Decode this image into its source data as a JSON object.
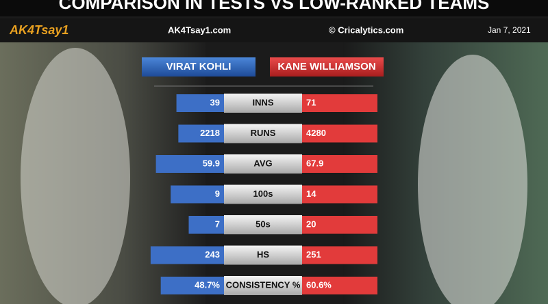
{
  "chart_data": {
    "type": "butterfly",
    "title": "COMPARISON IN TESTS VS LOW-RANKED TEAMS",
    "annotations": [
      "AK4Tsay1",
      "AK4Tsay1.com",
      "© Cricalytics.com",
      "Jan 7, 2021"
    ],
    "categories": [
      "INNS",
      "RUNS",
      "AVG",
      "100s",
      "50s",
      "HS",
      "CONSISTENCY %"
    ],
    "series": [
      {
        "name": "VIRAT KOHLI",
        "color": "#3d6fc6",
        "values": [
          39,
          2218,
          59.9,
          9,
          7,
          243,
          48.7
        ],
        "value_labels": [
          "39",
          "2218",
          "59.9",
          "9",
          "7",
          "243",
          "48.7%"
        ]
      },
      {
        "name": "KANE WILLIAMSON",
        "color": "#e23b3b",
        "values": [
          71,
          4280,
          67.9,
          14,
          20,
          251,
          60.6
        ],
        "value_labels": [
          "71",
          "4280",
          "67.9",
          "14",
          "20",
          "251",
          "60.6%"
        ]
      }
    ]
  }
}
